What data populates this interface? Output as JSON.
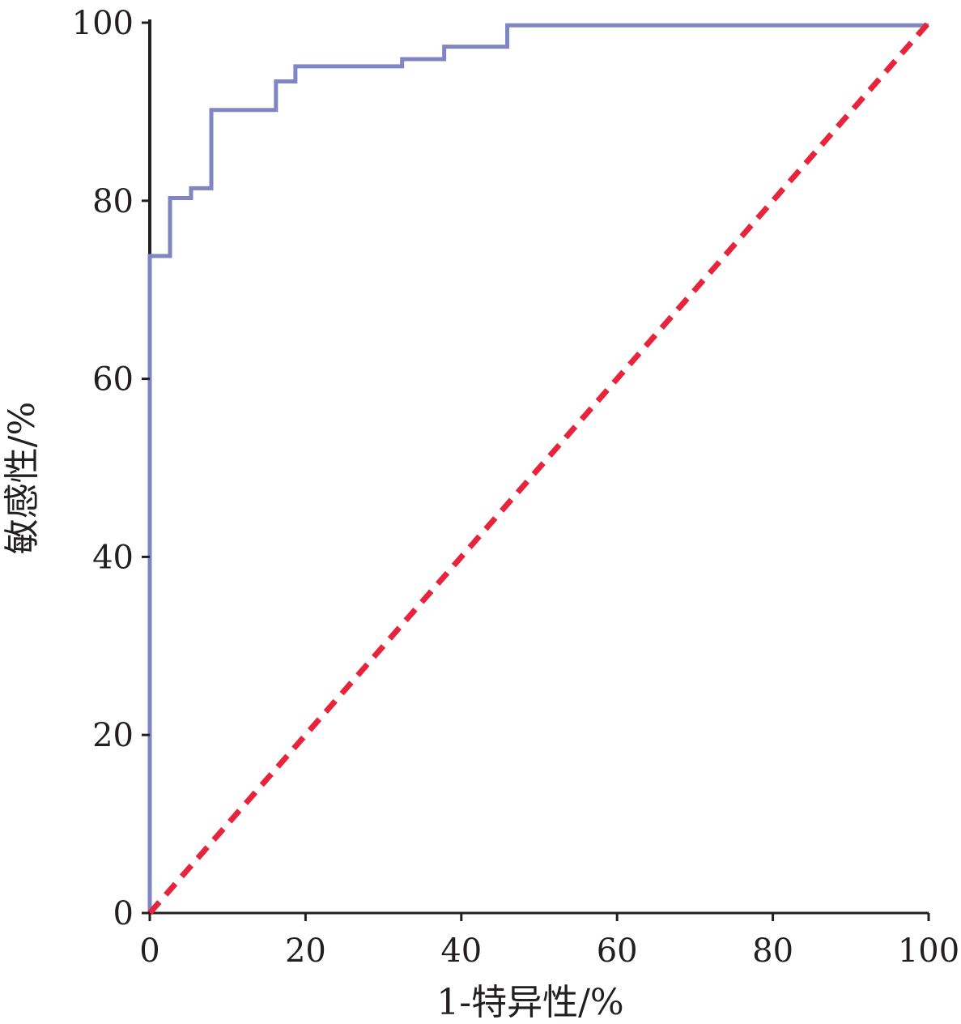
{
  "chart_data": {
    "type": "line",
    "xlabel": "1-特异性/%",
    "ylabel": "敏感性/%",
    "xlim": [
      0,
      100
    ],
    "ylim": [
      0,
      100
    ],
    "x_ticks": [
      0,
      20,
      40,
      60,
      80,
      100
    ],
    "y_ticks": [
      0,
      20,
      40,
      60,
      80,
      100
    ],
    "x_tick_labels": [
      "0",
      "20",
      "40",
      "60",
      "80",
      "100"
    ],
    "y_tick_labels": [
      "0",
      "20",
      "40",
      "60",
      "80",
      "100"
    ],
    "grid": false,
    "legend": "none",
    "series": [
      {
        "style": "step",
        "color": "#8085c3",
        "x": [
          0,
          0,
          2.6,
          2.6,
          5.3,
          5.3,
          7.9,
          7.9,
          16.2,
          16.2,
          18.7,
          18.7,
          32.4,
          32.4,
          37.8,
          37.8,
          45.9,
          45.9,
          100
        ],
        "y": [
          0,
          73.8,
          73.8,
          80.3,
          80.3,
          81.4,
          81.4,
          90.2,
          90.2,
          93.4,
          93.4,
          95.1,
          95.1,
          95.9,
          95.9,
          97.3,
          97.3,
          99.7,
          99.7
        ]
      },
      {
        "style": "dashed",
        "color": "#e8243c",
        "x": [
          0,
          100
        ],
        "y": [
          0,
          100
        ]
      }
    ]
  }
}
